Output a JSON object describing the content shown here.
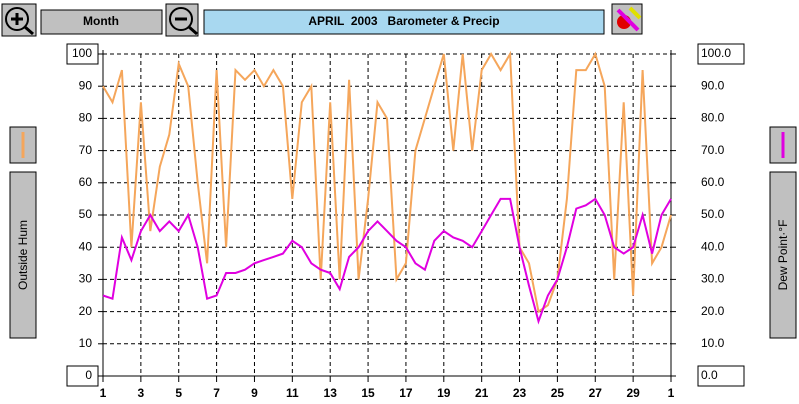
{
  "toolbar": {
    "period_button": "Month",
    "title": "APRIL  2003   Barometer & Precip"
  },
  "chart_data": {
    "type": "line",
    "x": [
      1,
      1.5,
      2,
      2.5,
      3,
      3.5,
      4,
      4.5,
      5,
      5.5,
      6,
      6.5,
      7,
      7.5,
      8,
      8.5,
      9,
      9.5,
      10,
      10.5,
      11,
      11.5,
      12,
      12.5,
      13,
      13.5,
      14,
      14.5,
      15,
      15.5,
      16,
      16.5,
      17,
      17.5,
      18,
      18.5,
      19,
      19.5,
      20,
      20.5,
      21,
      21.5,
      22,
      22.5,
      23,
      23.5,
      24,
      24.5,
      25,
      25.5,
      26,
      26.5,
      27,
      27.5,
      28,
      28.5,
      29,
      29.5,
      30,
      30.5,
      31
    ],
    "series": [
      {
        "name": "Outside Hum",
        "color": "#f5a65b",
        "axis": "y",
        "values": [
          90,
          85,
          95,
          40,
          85,
          45,
          65,
          75,
          97,
          90,
          60,
          35,
          95,
          40,
          95,
          92,
          95,
          90,
          95,
          90,
          55,
          85,
          90,
          30,
          85,
          30,
          92,
          30,
          55,
          85,
          80,
          30,
          35,
          70,
          80,
          90,
          100,
          70,
          100,
          70,
          95,
          100,
          95,
          100,
          40,
          35,
          20,
          22,
          30,
          55,
          95,
          95,
          100,
          90,
          30,
          85,
          25,
          95,
          35,
          40,
          50
        ]
      },
      {
        "name": "Dew Point·°F",
        "color": "#e000e0",
        "axis": "y2",
        "values": [
          25,
          24,
          43,
          36,
          45,
          50,
          45,
          48,
          45,
          50,
          40,
          24,
          25,
          32,
          32,
          33,
          35,
          36,
          37,
          38,
          42,
          40,
          35,
          33,
          32,
          27,
          37,
          40,
          45,
          48,
          45,
          42,
          40,
          35,
          33,
          42,
          45,
          43,
          42,
          40,
          45,
          50,
          55,
          55,
          40,
          28,
          17,
          25,
          30,
          40,
          52,
          53,
          55,
          50,
          40,
          38,
          40,
          50,
          38,
          50,
          55
        ]
      }
    ],
    "xlim": [
      1,
      31
    ],
    "xticks": [
      1,
      3,
      5,
      7,
      9,
      11,
      13,
      15,
      17,
      19,
      21,
      23,
      25,
      27,
      29,
      {
        "value": 31,
        "label": "1"
      }
    ],
    "ylim": [
      0,
      100
    ],
    "yticks": [
      0,
      10,
      20,
      30,
      40,
      50,
      60,
      70,
      80,
      90,
      100
    ],
    "y2lim": [
      0,
      100
    ],
    "y2ticks": [
      {
        "value": 0,
        "label": "0.0"
      },
      {
        "value": 10,
        "label": "10.0"
      },
      {
        "value": 20,
        "label": "20.0"
      },
      {
        "value": 30,
        "label": "30.0"
      },
      {
        "value": 40,
        "label": "40.0"
      },
      {
        "value": 50,
        "label": "50.0"
      },
      {
        "value": 60,
        "label": "60.0"
      },
      {
        "value": 70,
        "label": "70.0"
      },
      {
        "value": 80,
        "label": "80.0"
      },
      {
        "value": 90,
        "label": "90.0"
      },
      {
        "value": 100,
        "label": "100.0"
      }
    ],
    "grid": true
  }
}
